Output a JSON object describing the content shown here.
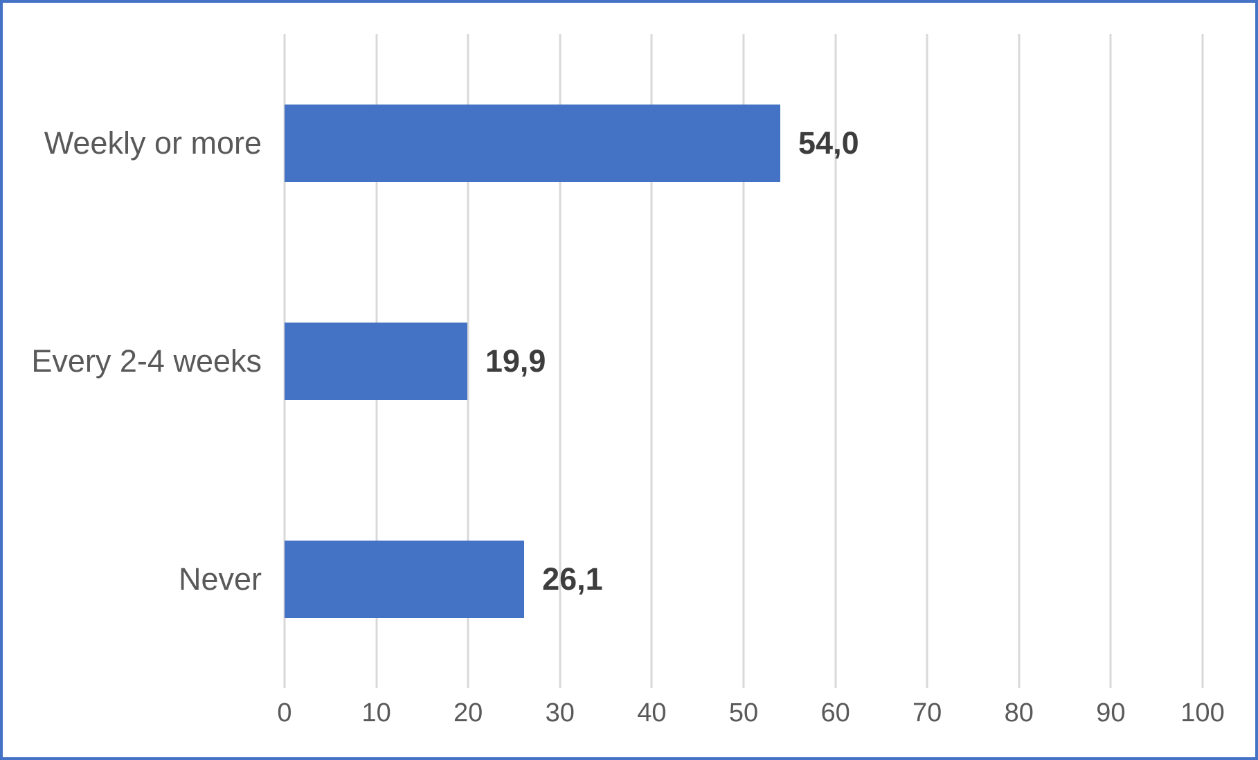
{
  "chart_data": {
    "type": "bar",
    "orientation": "horizontal",
    "title": "",
    "xlabel": "",
    "ylabel": "",
    "categories": [
      "Weekly or more",
      "Every 2-4 weeks",
      "Never"
    ],
    "values": [
      54.0,
      19.9,
      26.1
    ],
    "value_labels": [
      "54,0",
      "19,9",
      "26,1"
    ],
    "x_ticks": [
      0,
      10,
      20,
      30,
      40,
      50,
      60,
      70,
      80,
      90,
      100
    ],
    "x_tick_labels": [
      "0",
      "10",
      "20",
      "30",
      "40",
      "50",
      "60",
      "70",
      "80",
      "90",
      "100"
    ],
    "xlim": [
      0,
      100
    ],
    "grid": true,
    "legend": false,
    "colors": {
      "bar": "#4472C4",
      "frame_border": "#4472C4",
      "gridline": "#D9D9D9",
      "category_label": "#595959",
      "tick_label": "#595959",
      "value_label": "#3D3D3D",
      "background": "#FFFFFF"
    }
  }
}
